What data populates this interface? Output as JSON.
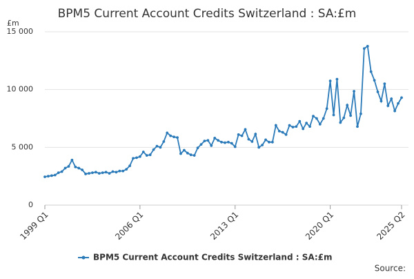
{
  "chart_data": {
    "type": "line",
    "title": "BPM5 Current Account Credits Switzerland : SA:£m",
    "y_unit": "£m",
    "source": "Source:",
    "categories": [
      "1999 Q1",
      null,
      null,
      null,
      null,
      null,
      null,
      null,
      null,
      null,
      null,
      null,
      null,
      null,
      null,
      null,
      null,
      null,
      null,
      null,
      null,
      null,
      null,
      null,
      null,
      null,
      null,
      null,
      "2006 Q1",
      null,
      null,
      null,
      null,
      null,
      null,
      null,
      null,
      null,
      null,
      null,
      null,
      null,
      null,
      null,
      null,
      null,
      null,
      null,
      null,
      null,
      null,
      null,
      null,
      null,
      null,
      null,
      "2013 Q1",
      null,
      null,
      null,
      null,
      null,
      null,
      null,
      null,
      null,
      null,
      null,
      null,
      null,
      null,
      null,
      null,
      null,
      null,
      null,
      null,
      null,
      null,
      null,
      null,
      null,
      null,
      null,
      "2020 Q1",
      null,
      null,
      null,
      null,
      null,
      null,
      null,
      null,
      null,
      null,
      null,
      null,
      null,
      null,
      null,
      null,
      null,
      null,
      null,
      null,
      "2025 Q2"
    ],
    "series": [
      {
        "name": "BPM5 Current Account Credits Switzerland : SA:£m",
        "color": "#2a7ab9",
        "values": [
          2450,
          2500,
          2550,
          2600,
          2800,
          2900,
          3200,
          3350,
          3900,
          3300,
          3200,
          3050,
          2700,
          2750,
          2800,
          2850,
          2750,
          2800,
          2850,
          2750,
          2900,
          2850,
          2950,
          2950,
          3100,
          3400,
          4050,
          4100,
          4200,
          4600,
          4300,
          4350,
          4800,
          5100,
          5000,
          5500,
          6250,
          6000,
          5900,
          5850,
          4450,
          4750,
          4500,
          4350,
          4300,
          4950,
          5250,
          5550,
          5600,
          5150,
          5800,
          5600,
          5450,
          5400,
          5450,
          5350,
          5050,
          6100,
          6000,
          6550,
          5700,
          5500,
          6150,
          5000,
          5200,
          5650,
          5450,
          5450,
          6900,
          6400,
          6300,
          6100,
          6900,
          6750,
          6800,
          7250,
          6600,
          7100,
          6800,
          7700,
          7500,
          7000,
          7500,
          8350,
          10750,
          7800,
          10900,
          7150,
          7550,
          8650,
          7750,
          9850,
          6800,
          7900,
          13550,
          13750,
          11550,
          10800,
          9800,
          9000,
          10500,
          8600,
          9200,
          8150,
          8800,
          9300
        ]
      }
    ],
    "ylim": [
      0,
      15000
    ],
    "yticks": [
      0,
      {
        "value": 5000,
        "label": "5 000"
      },
      {
        "value": 10000,
        "label": "10 000"
      },
      {
        "value": 15000,
        "label": "15 000"
      }
    ],
    "grid": true
  }
}
